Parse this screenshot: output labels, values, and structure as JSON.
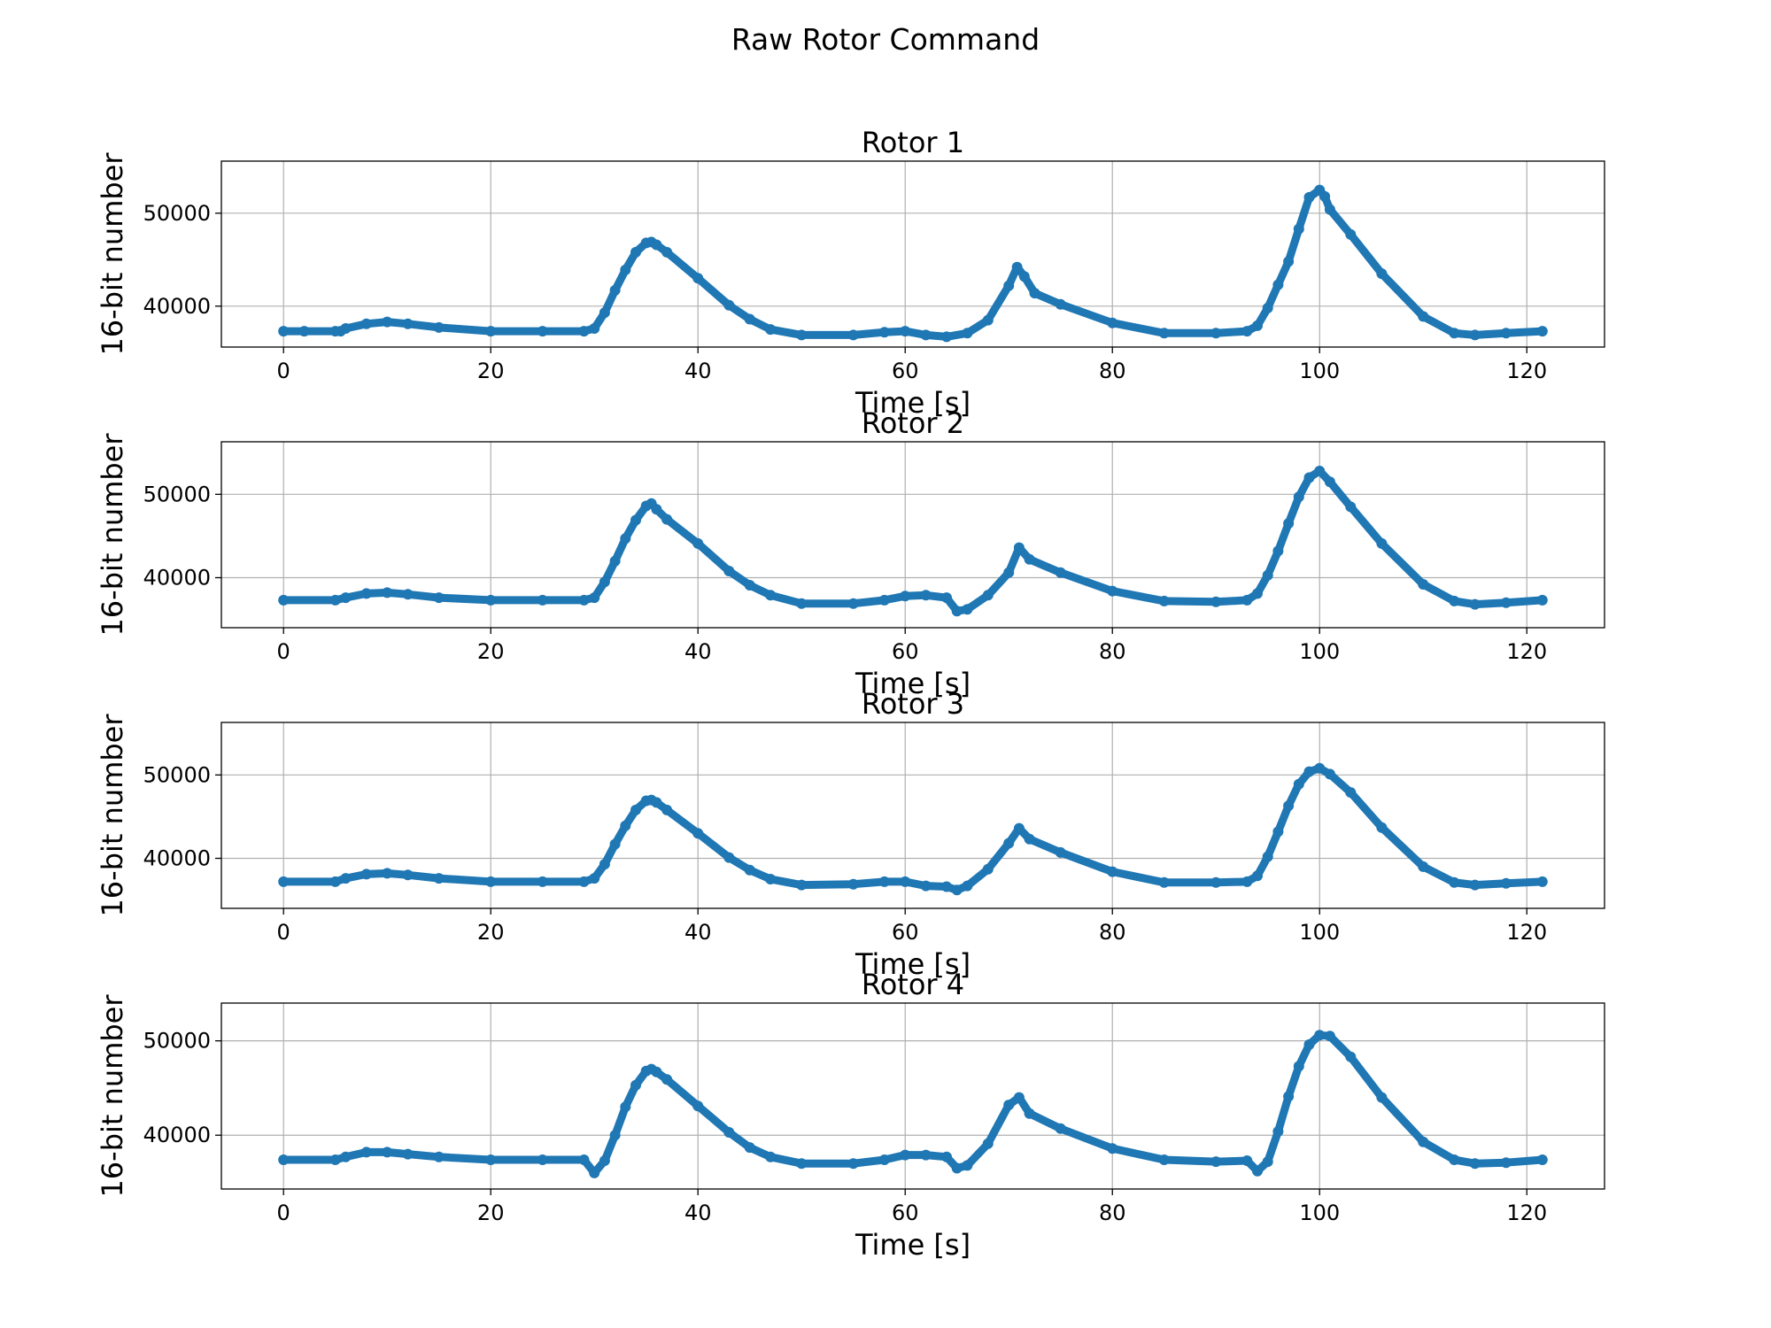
{
  "figure": {
    "title": "Raw Rotor Command",
    "line_color": "#1f77b4",
    "grid": true
  },
  "chart_data": [
    {
      "type": "line",
      "title": "Rotor 1",
      "xlabel": "Time [s]",
      "ylabel": "16-bit number",
      "xlim": [
        -6,
        127.5
      ],
      "ylim": [
        35600,
        55600
      ],
      "xticks": [
        0,
        20,
        40,
        60,
        80,
        100,
        120
      ],
      "yticks": [
        40000,
        50000
      ],
      "series": [
        {
          "x": [
            0.0,
            2.0,
            5.0,
            5.5,
            6.0,
            8.0,
            10.0,
            12.0,
            15.0,
            20.0,
            25.0,
            29.0,
            30.0,
            31.0,
            32.0,
            33.0,
            34.0,
            35.0,
            35.5,
            36.0,
            37.0,
            40.0,
            43.0,
            45.0,
            47.0,
            50.0,
            55.0,
            58.0,
            60.0,
            62.0,
            64.0,
            66.0,
            68.0,
            70.0,
            70.8,
            71.5,
            72.5,
            75.0,
            80.0,
            85.0,
            90.0,
            93.0,
            94.0,
            95.0,
            96.0,
            97.0,
            98.0,
            99.0,
            100.0,
            100.5,
            101.0,
            103.0,
            106.0,
            110.0,
            113.0,
            115.0,
            118.0,
            121.5
          ],
          "y": [
            37300,
            37300,
            37300,
            37300,
            37600,
            38100,
            38300,
            38100,
            37700,
            37300,
            37300,
            37300,
            37600,
            39300,
            41700,
            43900,
            45800,
            46800,
            46900,
            46600,
            45800,
            43000,
            40100,
            38600,
            37500,
            36900,
            36900,
            37200,
            37300,
            36900,
            36700,
            37100,
            38500,
            42200,
            44200,
            43200,
            41400,
            40200,
            38200,
            37100,
            37100,
            37300,
            37900,
            39800,
            42300,
            44800,
            48300,
            51700,
            52500,
            51800,
            50400,
            47700,
            43500,
            38900,
            37100,
            36900,
            37100,
            37300
          ]
        }
      ]
    },
    {
      "type": "line",
      "title": "Rotor 2",
      "xlabel": "Time [s]",
      "ylabel": "16-bit number",
      "xlim": [
        -6,
        127.5
      ],
      "ylim": [
        34000,
        56300
      ],
      "xticks": [
        0,
        20,
        40,
        60,
        80,
        100,
        120
      ],
      "yticks": [
        40000,
        50000
      ],
      "series": [
        {
          "x": [
            0.0,
            5.0,
            6.0,
            8.0,
            10.0,
            12.0,
            15.0,
            20.0,
            25.0,
            29.0,
            30.0,
            31.0,
            32.0,
            33.0,
            34.0,
            35.0,
            35.5,
            36.0,
            37.0,
            40.0,
            43.0,
            45.0,
            47.0,
            50.0,
            55.0,
            58.0,
            60.0,
            62.0,
            64.0,
            65.0,
            66.0,
            68.0,
            70.0,
            71.0,
            72.0,
            75.0,
            80.0,
            85.0,
            90.0,
            93.0,
            94.0,
            95.0,
            96.0,
            97.0,
            98.0,
            99.0,
            100.0,
            101.0,
            103.0,
            106.0,
            110.0,
            113.0,
            115.0,
            118.0,
            121.5
          ],
          "y": [
            37300,
            37300,
            37600,
            38100,
            38200,
            38000,
            37600,
            37300,
            37300,
            37300,
            37600,
            39500,
            42000,
            44700,
            46900,
            48600,
            48900,
            48200,
            47000,
            44100,
            40800,
            39100,
            37900,
            36900,
            36900,
            37300,
            37800,
            37900,
            37600,
            36000,
            36200,
            37900,
            40600,
            43600,
            42200,
            40600,
            38400,
            37200,
            37100,
            37300,
            38100,
            40300,
            43200,
            46500,
            49700,
            52000,
            52800,
            51500,
            48500,
            44100,
            39200,
            37200,
            36800,
            37000,
            37300
          ]
        }
      ]
    },
    {
      "type": "line",
      "title": "Rotor 3",
      "xlabel": "Time [s]",
      "ylabel": "16-bit number",
      "xlim": [
        -6,
        127.5
      ],
      "ylim": [
        34000,
        56300
      ],
      "xticks": [
        0,
        20,
        40,
        60,
        80,
        100,
        120
      ],
      "yticks": [
        40000,
        50000
      ],
      "series": [
        {
          "x": [
            0.0,
            5.0,
            6.0,
            8.0,
            10.0,
            12.0,
            15.0,
            20.0,
            25.0,
            29.0,
            30.0,
            31.0,
            32.0,
            33.0,
            34.0,
            35.0,
            35.5,
            36.0,
            37.0,
            40.0,
            43.0,
            45.0,
            47.0,
            50.0,
            55.0,
            58.0,
            60.0,
            62.0,
            64.0,
            65.0,
            66.0,
            68.0,
            70.0,
            71.0,
            72.0,
            75.0,
            80.0,
            85.0,
            90.0,
            93.0,
            94.0,
            95.0,
            96.0,
            97.0,
            98.0,
            99.0,
            100.0,
            101.0,
            103.0,
            106.0,
            110.0,
            113.0,
            115.0,
            118.0,
            121.5
          ],
          "y": [
            37200,
            37200,
            37600,
            38100,
            38200,
            38000,
            37600,
            37200,
            37200,
            37200,
            37600,
            39300,
            41700,
            43900,
            45800,
            46900,
            47000,
            46700,
            45800,
            43000,
            40100,
            38600,
            37500,
            36800,
            36900,
            37200,
            37200,
            36700,
            36600,
            36200,
            36700,
            38700,
            41800,
            43600,
            42300,
            40700,
            38400,
            37100,
            37100,
            37200,
            37900,
            40200,
            43200,
            46300,
            48900,
            50400,
            50800,
            50100,
            47900,
            43700,
            39000,
            37100,
            36800,
            37000,
            37200
          ]
        }
      ]
    },
    {
      "type": "line",
      "title": "Rotor 4",
      "xlabel": "Time [s]",
      "ylabel": "16-bit number",
      "xlim": [
        -6,
        127.5
      ],
      "ylim": [
        34300,
        54000
      ],
      "xticks": [
        0,
        20,
        40,
        60,
        80,
        100,
        120
      ],
      "yticks": [
        40000,
        50000
      ],
      "series": [
        {
          "x": [
            0.0,
            5.0,
            6.0,
            8.0,
            10.0,
            12.0,
            15.0,
            20.0,
            25.0,
            29.0,
            30.0,
            31.0,
            32.0,
            33.0,
            34.0,
            35.0,
            35.5,
            36.0,
            37.0,
            40.0,
            43.0,
            45.0,
            47.0,
            50.0,
            55.0,
            58.0,
            60.0,
            62.0,
            64.0,
            65.0,
            66.0,
            68.0,
            70.0,
            71.0,
            72.0,
            75.0,
            80.0,
            85.0,
            90.0,
            93.0,
            94.0,
            95.0,
            96.0,
            97.0,
            98.0,
            99.0,
            100.0,
            101.0,
            103.0,
            106.0,
            110.0,
            113.0,
            115.0,
            118.0,
            121.5
          ],
          "y": [
            37400,
            37400,
            37700,
            38200,
            38200,
            38000,
            37700,
            37400,
            37400,
            37400,
            36000,
            37300,
            40000,
            43000,
            45300,
            46800,
            47000,
            46700,
            45900,
            43100,
            40300,
            38700,
            37700,
            37000,
            37000,
            37400,
            37900,
            37900,
            37700,
            36500,
            36800,
            39100,
            43200,
            44000,
            42300,
            40700,
            38600,
            37400,
            37200,
            37300,
            36200,
            37200,
            40400,
            44100,
            47300,
            49600,
            50600,
            50500,
            48300,
            44000,
            39300,
            37400,
            37000,
            37100,
            37400
          ]
        }
      ]
    }
  ]
}
